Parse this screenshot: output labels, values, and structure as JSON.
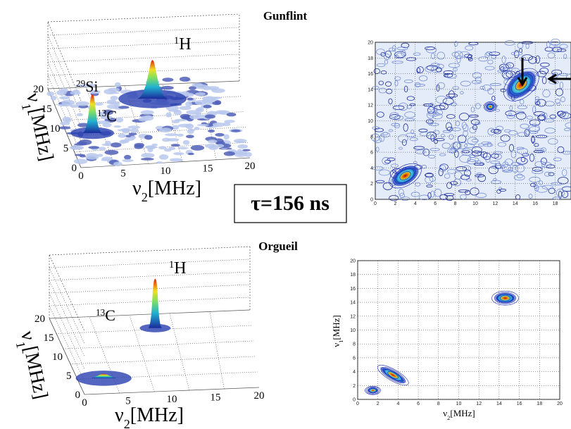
{
  "labels": {
    "gunflint": "Gunflint",
    "orgueil": "Orgueil",
    "tau": "τ=156 ns"
  },
  "top_3d": {
    "peaks": [
      {
        "mass": "1",
        "element": "H"
      },
      {
        "mass": "29",
        "element": "Si"
      },
      {
        "mass": "13",
        "element": "C"
      }
    ],
    "x_label": {
      "symbol": "ν",
      "sub": "2",
      "unit": "[MHz]"
    },
    "y_label": {
      "symbol": "ν",
      "sub": "1",
      "unit": "[MHz]"
    },
    "x_ticks": [
      0,
      5,
      10,
      15,
      20
    ],
    "y_ticks": [
      0,
      5,
      10,
      15,
      20
    ]
  },
  "top_contour": {
    "x_ticks": [
      0,
      2,
      4,
      6,
      8,
      10,
      12,
      14,
      16,
      18
    ],
    "y_ticks": [
      0,
      2,
      4,
      6,
      8,
      10,
      12,
      14,
      16,
      18,
      20
    ]
  },
  "bottom_3d": {
    "peaks": [
      {
        "mass": "1",
        "element": "H"
      },
      {
        "mass": "13",
        "element": "C"
      }
    ],
    "x_label": {
      "symbol": "ν",
      "sub": "2",
      "unit": "[MHz]"
    },
    "y_label": {
      "symbol": "ν",
      "sub": "1",
      "unit": "[MHz]"
    },
    "x_ticks": [
      0,
      5,
      10,
      15,
      20
    ],
    "y_ticks": [
      0,
      5,
      10,
      15,
      20
    ]
  },
  "bottom_contour": {
    "x_label": {
      "symbol": "ν",
      "sub": "2",
      "unit": "[MHz]"
    },
    "y_label": {
      "symbol": "ν",
      "sub": "1",
      "unit": "[MHz]"
    },
    "x_ticks": [
      0,
      2,
      4,
      6,
      8,
      10,
      12,
      14,
      16,
      18,
      20
    ],
    "y_ticks": [
      0,
      2,
      4,
      6,
      8,
      10,
      12,
      14,
      16,
      18,
      20
    ]
  }
}
